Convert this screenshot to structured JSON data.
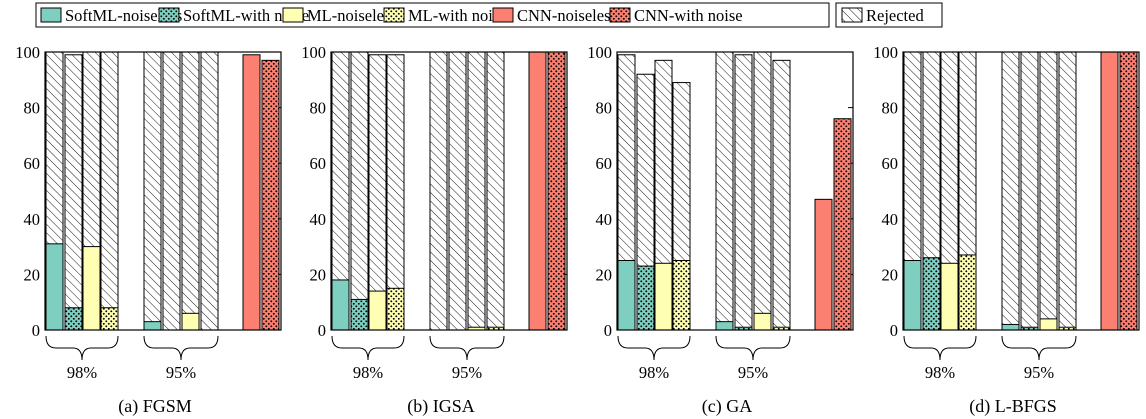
{
  "legend": [
    {
      "label": "SoftML-noiseless",
      "style": "softml-solid"
    },
    {
      "label": "SoftML-with noise",
      "style": "softml-dots"
    },
    {
      "label": "ML-noiseless",
      "style": "ml-solid"
    },
    {
      "label": "ML-with noise",
      "style": "ml-dots"
    },
    {
      "label": "CNN-noiseless",
      "style": "cnn-solid"
    },
    {
      "label": "CNN-with noise",
      "style": "cnn-dots"
    },
    {
      "label": "Rejected",
      "style": "rejected-hatch"
    }
  ],
  "colors": {
    "softml": "#7fcfc1",
    "ml": "#ffffb3",
    "cnn": "#fb8072",
    "hatch": "#000000",
    "dots": "#000000"
  },
  "chart_data": [
    {
      "type": "bar",
      "title": "(a) FGSM",
      "ylim": [
        0,
        100
      ],
      "yticks": [
        0,
        20,
        40,
        60,
        80,
        100
      ],
      "groups": [
        {
          "label": "98%",
          "bars": [
            {
              "series": "SoftML-noiseless",
              "value": 31,
              "rejected": 100
            },
            {
              "series": "SoftML-with noise",
              "value": 8,
              "rejected": 99
            },
            {
              "series": "ML-noiseless",
              "value": 30,
              "rejected": 100
            },
            {
              "series": "ML-with noise",
              "value": 8,
              "rejected": 100
            }
          ]
        },
        {
          "label": "95%",
          "bars": [
            {
              "series": "SoftML-noiseless",
              "value": 3,
              "rejected": 100
            },
            {
              "series": "SoftML-with noise",
              "value": 0,
              "rejected": 100
            },
            {
              "series": "ML-noiseless",
              "value": 6,
              "rejected": 100
            },
            {
              "series": "ML-with noise",
              "value": 0,
              "rejected": 100
            }
          ]
        },
        {
          "label": "",
          "bars": [
            {
              "series": "CNN-noiseless",
              "value": 99,
              "rejected": 0
            },
            {
              "series": "CNN-with noise",
              "value": 97,
              "rejected": 0
            }
          ]
        }
      ]
    },
    {
      "type": "bar",
      "title": "(b) IGSA",
      "ylim": [
        0,
        100
      ],
      "yticks": [
        0,
        20,
        40,
        60,
        80,
        100
      ],
      "groups": [
        {
          "label": "98%",
          "bars": [
            {
              "series": "SoftML-noiseless",
              "value": 18,
              "rejected": 100
            },
            {
              "series": "SoftML-with noise",
              "value": 11,
              "rejected": 100
            },
            {
              "series": "ML-noiseless",
              "value": 14,
              "rejected": 99
            },
            {
              "series": "ML-with noise",
              "value": 15,
              "rejected": 99
            }
          ]
        },
        {
          "label": "95%",
          "bars": [
            {
              "series": "SoftML-noiseless",
              "value": 0,
              "rejected": 100
            },
            {
              "series": "SoftML-with noise",
              "value": 0,
              "rejected": 100
            },
            {
              "series": "ML-noiseless",
              "value": 1,
              "rejected": 100
            },
            {
              "series": "ML-with noise",
              "value": 1,
              "rejected": 100
            }
          ]
        },
        {
          "label": "",
          "bars": [
            {
              "series": "CNN-noiseless",
              "value": 100,
              "rejected": 0
            },
            {
              "series": "CNN-with noise",
              "value": 100,
              "rejected": 0
            }
          ]
        }
      ]
    },
    {
      "type": "bar",
      "title": "(c) GA",
      "ylim": [
        0,
        100
      ],
      "yticks": [
        0,
        20,
        40,
        60,
        80,
        100
      ],
      "groups": [
        {
          "label": "98%",
          "bars": [
            {
              "series": "SoftML-noiseless",
              "value": 25,
              "rejected": 99
            },
            {
              "series": "SoftML-with noise",
              "value": 23,
              "rejected": 92
            },
            {
              "series": "ML-noiseless",
              "value": 24,
              "rejected": 97
            },
            {
              "series": "ML-with noise",
              "value": 25,
              "rejected": 89
            }
          ]
        },
        {
          "label": "95%",
          "bars": [
            {
              "series": "SoftML-noiseless",
              "value": 3,
              "rejected": 100
            },
            {
              "series": "SoftML-with noise",
              "value": 1,
              "rejected": 99
            },
            {
              "series": "ML-noiseless",
              "value": 6,
              "rejected": 100
            },
            {
              "series": "ML-with noise",
              "value": 1,
              "rejected": 97
            }
          ]
        },
        {
          "label": "",
          "bars": [
            {
              "series": "CNN-noiseless",
              "value": 47,
              "rejected": 0
            },
            {
              "series": "CNN-with noise",
              "value": 76,
              "rejected": 0
            }
          ]
        }
      ]
    },
    {
      "type": "bar",
      "title": "(d) L-BFGS",
      "ylim": [
        0,
        100
      ],
      "yticks": [
        0,
        20,
        40,
        60,
        80,
        100
      ],
      "groups": [
        {
          "label": "98%",
          "bars": [
            {
              "series": "SoftML-noiseless",
              "value": 25,
              "rejected": 100
            },
            {
              "series": "SoftML-with noise",
              "value": 26,
              "rejected": 100
            },
            {
              "series": "ML-noiseless",
              "value": 24,
              "rejected": 100
            },
            {
              "series": "ML-with noise",
              "value": 27,
              "rejected": 100
            }
          ]
        },
        {
          "label": "95%",
          "bars": [
            {
              "series": "SoftML-noiseless",
              "value": 2,
              "rejected": 100
            },
            {
              "series": "SoftML-with noise",
              "value": 1,
              "rejected": 100
            },
            {
              "series": "ML-noiseless",
              "value": 4,
              "rejected": 100
            },
            {
              "series": "ML-with noise",
              "value": 1,
              "rejected": 100
            }
          ]
        },
        {
          "label": "",
          "bars": [
            {
              "series": "CNN-noiseless",
              "value": 100,
              "rejected": 0
            },
            {
              "series": "CNN-with noise",
              "value": 100,
              "rejected": 0
            }
          ]
        }
      ]
    }
  ]
}
